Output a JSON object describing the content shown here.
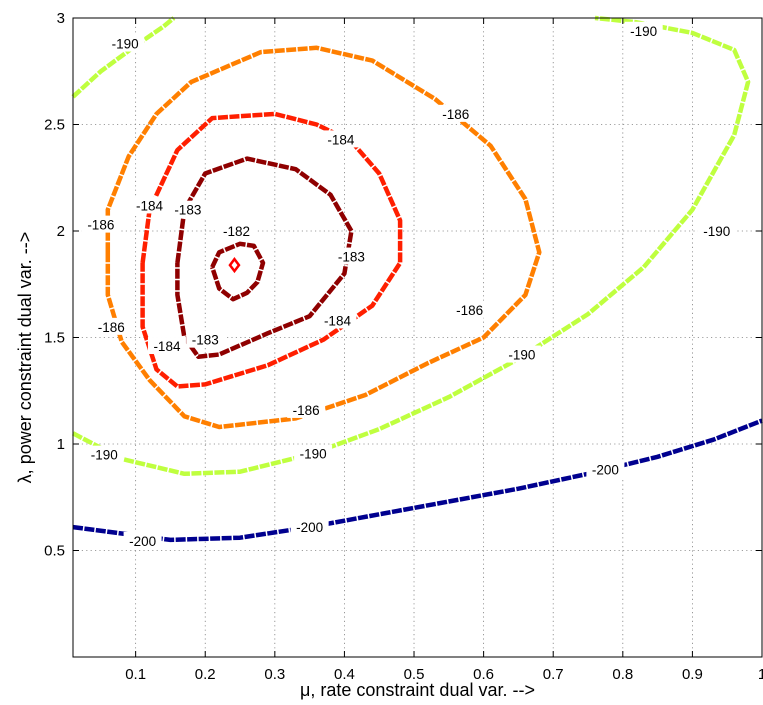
{
  "chart_data": {
    "type": "contour",
    "xlabel": "μ,  rate constraint dual var.  -->",
    "ylabel": "λ,  power constraint dual var.  -->",
    "xlim": [
      0.01,
      1
    ],
    "ylim": [
      0,
      3
    ],
    "xticks": [
      {
        "value": 0.1,
        "label": "0.1"
      },
      {
        "value": 0.2,
        "label": "0.2"
      },
      {
        "value": 0.3,
        "label": "0.3"
      },
      {
        "value": 0.4,
        "label": "0.4"
      },
      {
        "value": 0.5,
        "label": "0.5"
      },
      {
        "value": 0.6,
        "label": "0.6"
      },
      {
        "value": 0.7,
        "label": "0.7"
      },
      {
        "value": 0.8,
        "label": "0.8"
      },
      {
        "value": 0.9,
        "label": "0.9"
      },
      {
        "value": 1.0,
        "label": "1"
      }
    ],
    "yticks": [
      {
        "value": 0.5,
        "label": "0.5"
      },
      {
        "value": 1.0,
        "label": "1"
      },
      {
        "value": 1.5,
        "label": "1.5"
      },
      {
        "value": 2.0,
        "label": "2"
      },
      {
        "value": 2.5,
        "label": "2.5"
      },
      {
        "value": 3.0,
        "label": "3"
      }
    ],
    "grid": true,
    "series": [
      {
        "level": -200,
        "color": "#00008f",
        "points": [
          [
            0.01,
            0.61
          ],
          [
            0.08,
            0.58
          ],
          [
            0.15,
            0.55
          ],
          [
            0.25,
            0.56
          ],
          [
            0.35,
            0.61
          ],
          [
            0.45,
            0.67
          ],
          [
            0.55,
            0.73
          ],
          [
            0.65,
            0.79
          ],
          [
            0.75,
            0.86
          ],
          [
            0.85,
            0.94
          ],
          [
            0.93,
            1.02
          ],
          [
            1.0,
            1.11
          ]
        ],
        "labels": [
          {
            "x": 0.11,
            "y": 0.545,
            "text": "-200"
          },
          {
            "x": 0.35,
            "y": 0.61,
            "text": "-200"
          },
          {
            "x": 0.775,
            "y": 0.88,
            "text": "-200"
          }
        ]
      },
      {
        "level": -190,
        "color": "#bfff3f",
        "points": [
          [
            0.01,
            1.05
          ],
          [
            0.08,
            0.93
          ],
          [
            0.17,
            0.86
          ],
          [
            0.25,
            0.87
          ],
          [
            0.35,
            0.95
          ],
          [
            0.45,
            1.07
          ],
          [
            0.55,
            1.22
          ],
          [
            0.65,
            1.4
          ],
          [
            0.75,
            1.61
          ],
          [
            0.83,
            1.83
          ],
          [
            0.9,
            2.1
          ],
          [
            0.96,
            2.45
          ],
          [
            0.98,
            2.7
          ],
          [
            0.96,
            2.85
          ],
          [
            0.9,
            2.93
          ],
          [
            0.82,
            2.98
          ],
          [
            0.76,
            3.0
          ]
        ],
        "labels": [
          {
            "x": 0.055,
            "y": 0.95,
            "text": "-190"
          },
          {
            "x": 0.355,
            "y": 0.955,
            "text": "-190"
          },
          {
            "x": 0.655,
            "y": 1.42,
            "text": "-190"
          },
          {
            "x": 0.935,
            "y": 2.0,
            "text": "-190"
          },
          {
            "x": 0.83,
            "y": 2.94,
            "text": "-190"
          }
        ]
      },
      {
        "level": -190,
        "color": "#bfff3f",
        "points": [
          [
            0.01,
            2.63
          ],
          [
            0.05,
            2.75
          ],
          [
            0.1,
            2.87
          ],
          [
            0.14,
            2.96
          ],
          [
            0.155,
            3.0
          ]
        ],
        "labels": [
          {
            "x": 0.085,
            "y": 2.88,
            "text": "-190"
          }
        ]
      },
      {
        "level": -186,
        "color": "#ff7f00",
        "points": [
          [
            0.06,
            1.9
          ],
          [
            0.06,
            2.1
          ],
          [
            0.09,
            2.35
          ],
          [
            0.13,
            2.55
          ],
          [
            0.18,
            2.7
          ],
          [
            0.28,
            2.84
          ],
          [
            0.36,
            2.86
          ],
          [
            0.44,
            2.8
          ],
          [
            0.53,
            2.62
          ],
          [
            0.61,
            2.4
          ],
          [
            0.66,
            2.15
          ],
          [
            0.68,
            1.9
          ],
          [
            0.66,
            1.7
          ],
          [
            0.6,
            1.5
          ],
          [
            0.52,
            1.38
          ],
          [
            0.43,
            1.23
          ],
          [
            0.33,
            1.12
          ],
          [
            0.22,
            1.08
          ],
          [
            0.17,
            1.13
          ],
          [
            0.12,
            1.3
          ],
          [
            0.08,
            1.48
          ],
          [
            0.06,
            1.7
          ],
          [
            0.06,
            1.9
          ]
        ],
        "labels": [
          {
            "x": 0.05,
            "y": 2.03,
            "text": "-186"
          },
          {
            "x": 0.56,
            "y": 2.55,
            "text": "-186"
          },
          {
            "x": 0.58,
            "y": 1.63,
            "text": "-186"
          },
          {
            "x": 0.345,
            "y": 1.16,
            "text": "-186"
          },
          {
            "x": 0.065,
            "y": 1.55,
            "text": "-186"
          }
        ]
      },
      {
        "level": -184,
        "color": "#ff1f00",
        "points": [
          [
            0.11,
            1.85
          ],
          [
            0.12,
            2.1
          ],
          [
            0.16,
            2.38
          ],
          [
            0.21,
            2.53
          ],
          [
            0.3,
            2.55
          ],
          [
            0.36,
            2.5
          ],
          [
            0.41,
            2.42
          ],
          [
            0.45,
            2.27
          ],
          [
            0.48,
            2.05
          ],
          [
            0.48,
            1.85
          ],
          [
            0.44,
            1.65
          ],
          [
            0.37,
            1.49
          ],
          [
            0.29,
            1.37
          ],
          [
            0.2,
            1.28
          ],
          [
            0.16,
            1.27
          ],
          [
            0.13,
            1.35
          ],
          [
            0.11,
            1.55
          ],
          [
            0.11,
            1.85
          ]
        ],
        "labels": [
          {
            "x": 0.12,
            "y": 2.12,
            "text": "-184"
          },
          {
            "x": 0.395,
            "y": 2.43,
            "text": "-184"
          },
          {
            "x": 0.39,
            "y": 1.58,
            "text": "-184"
          },
          {
            "x": 0.145,
            "y": 1.46,
            "text": "-184"
          }
        ]
      },
      {
        "level": -183,
        "color": "#8f0000",
        "points": [
          [
            0.16,
            1.85
          ],
          [
            0.17,
            2.1
          ],
          [
            0.2,
            2.27
          ],
          [
            0.26,
            2.34
          ],
          [
            0.33,
            2.29
          ],
          [
            0.38,
            2.17
          ],
          [
            0.41,
            2.0
          ],
          [
            0.4,
            1.8
          ],
          [
            0.35,
            1.6
          ],
          [
            0.29,
            1.52
          ],
          [
            0.22,
            1.42
          ],
          [
            0.19,
            1.41
          ],
          [
            0.17,
            1.5
          ],
          [
            0.16,
            1.7
          ],
          [
            0.16,
            1.85
          ]
        ],
        "labels": [
          {
            "x": 0.175,
            "y": 2.1,
            "text": "-183"
          },
          {
            "x": 0.41,
            "y": 1.88,
            "text": "-183"
          },
          {
            "x": 0.2,
            "y": 1.49,
            "text": "-183"
          }
        ]
      },
      {
        "level": -182,
        "color": "#8f0000",
        "points": [
          [
            0.21,
            1.83
          ],
          [
            0.22,
            1.9
          ],
          [
            0.25,
            1.94
          ],
          [
            0.27,
            1.93
          ],
          [
            0.283,
            1.85
          ],
          [
            0.275,
            1.76
          ],
          [
            0.26,
            1.71
          ],
          [
            0.24,
            1.68
          ],
          [
            0.22,
            1.73
          ],
          [
            0.21,
            1.83
          ]
        ],
        "labels": [
          {
            "x": 0.245,
            "y": 2.0,
            "text": "-182"
          }
        ]
      }
    ],
    "marker": {
      "x": 0.242,
      "y": 1.84,
      "symbol": "diamond",
      "color": "#ff0000"
    }
  }
}
